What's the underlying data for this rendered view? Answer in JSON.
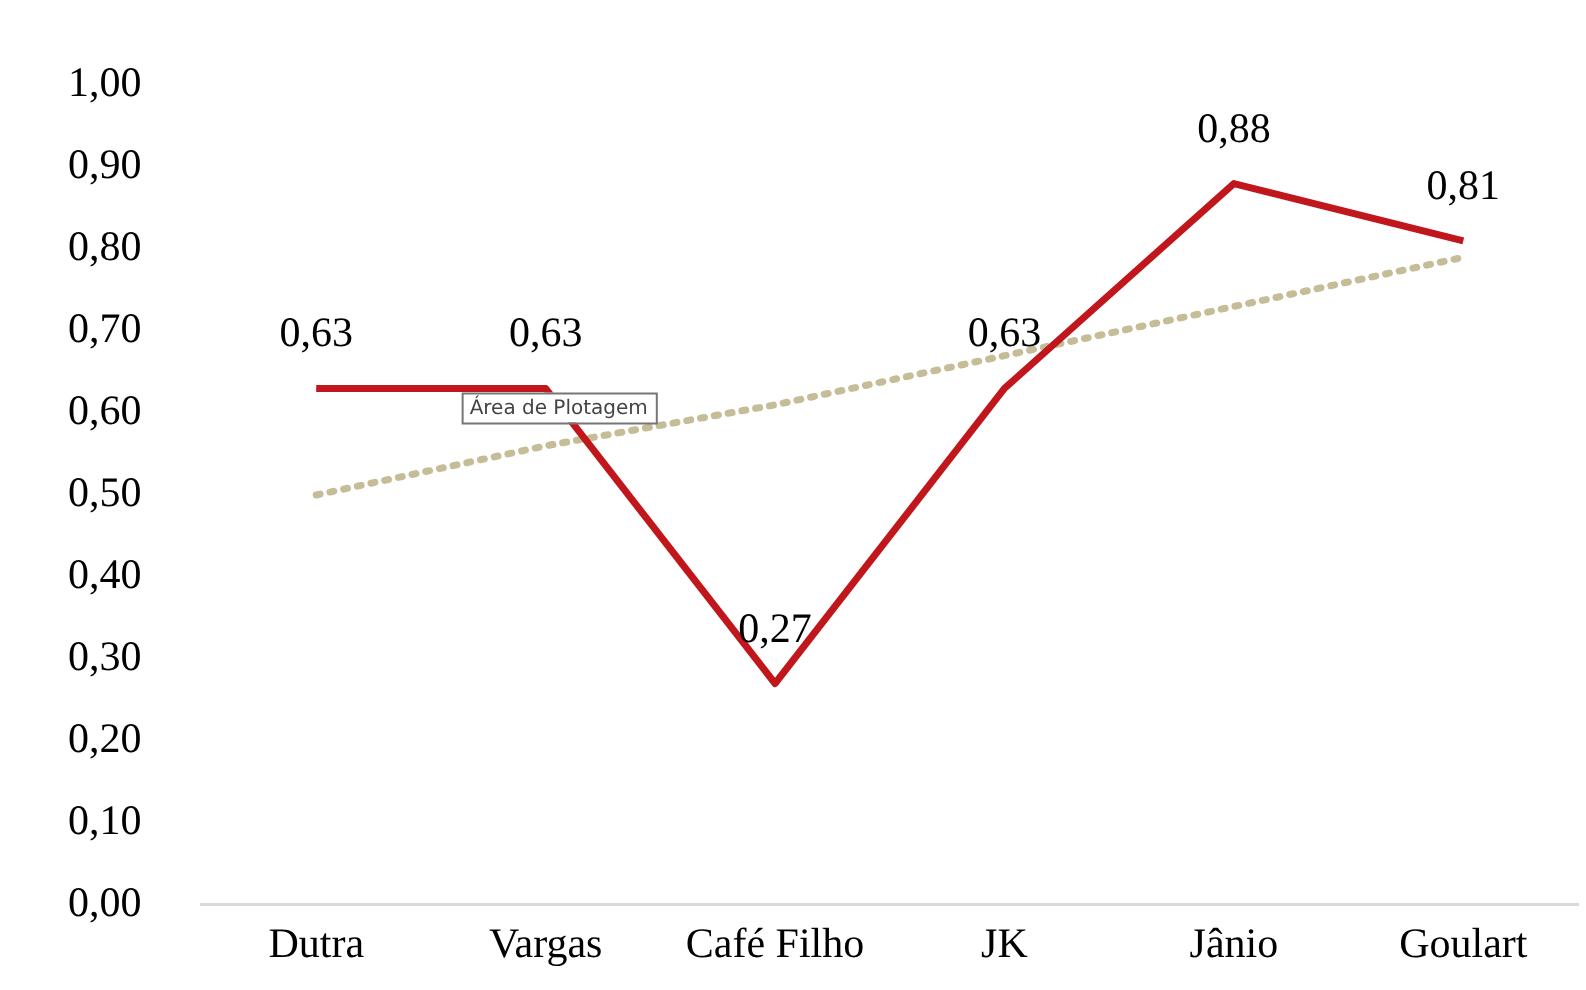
{
  "chart_data": {
    "type": "line",
    "categories": [
      "Dutra",
      "Vargas",
      "Café Filho",
      "JK",
      "Jânio",
      "Goulart"
    ],
    "series": [
      {
        "color": "#c0161c",
        "values": [
          0.63,
          0.63,
          0.27,
          0.63,
          0.88,
          0.81
        ],
        "value_labels": [
          "0,63",
          "0,63",
          "0,27",
          "0,63",
          "0,88",
          "0,81"
        ],
        "line_style": "solid"
      },
      {
        "color": "#c4bd97",
        "values": [
          0.5,
          0.56,
          0.61,
          0.67,
          0.73,
          0.79
        ],
        "line_style": "dotted"
      }
    ],
    "ylim": [
      0,
      1
    ],
    "yticks": [
      {
        "value": 0,
        "label": "0,00"
      },
      {
        "value": 0.1,
        "label": "0,10"
      },
      {
        "value": 0.2,
        "label": "0,20"
      },
      {
        "value": 0.3,
        "label": "0,30"
      },
      {
        "value": 0.4,
        "label": "0,40"
      },
      {
        "value": 0.5,
        "label": "0,50"
      },
      {
        "value": 0.6,
        "label": "0,60"
      },
      {
        "value": 0.7,
        "label": "0,70"
      },
      {
        "value": 0.8,
        "label": "0,80"
      },
      {
        "value": 0.9,
        "label": "0,90"
      },
      {
        "value": 1,
        "label": "1,00"
      }
    ],
    "grid": false,
    "legend": false,
    "marker": "none",
    "annotations": [
      "Área de Plotagem"
    ]
  }
}
